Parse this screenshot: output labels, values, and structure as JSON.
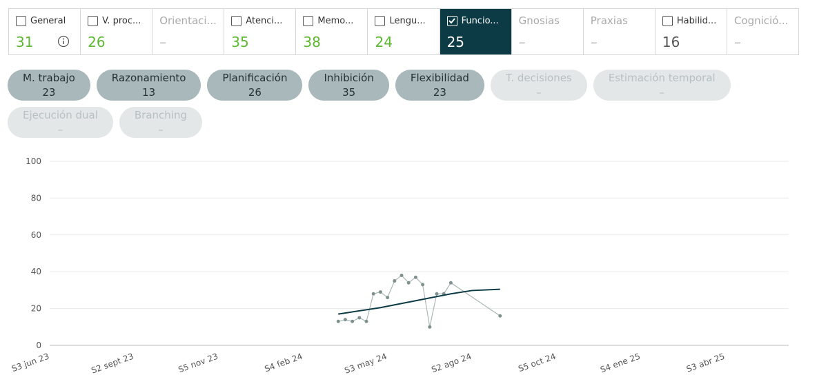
{
  "tabs": [
    {
      "label": "General",
      "value": 31,
      "checkbox": true,
      "checked": false,
      "info": true,
      "value_color": "#5cb82e"
    },
    {
      "label": "V. proc...",
      "value": 26,
      "checkbox": true,
      "checked": false,
      "value_color": "#5cb82e"
    },
    {
      "label": "Orientaci...",
      "value": "–",
      "checkbox": false,
      "checked": false,
      "value_color": "#b5b5b5"
    },
    {
      "label": "Atenci...",
      "value": 35,
      "checkbox": true,
      "checked": false,
      "value_color": "#5cb82e"
    },
    {
      "label": "Memo...",
      "value": 38,
      "checkbox": true,
      "checked": false,
      "value_color": "#5cb82e"
    },
    {
      "label": "Lengu...",
      "value": 24,
      "checkbox": true,
      "checked": false,
      "value_color": "#5cb82e"
    },
    {
      "label": "Funcio...",
      "value": 25,
      "checkbox": true,
      "checked": true,
      "value_color": "#ffffff"
    },
    {
      "label": "Gnosias",
      "value": "–",
      "checkbox": false,
      "checked": false,
      "value_color": "#b5b5b5"
    },
    {
      "label": "Praxias",
      "value": "–",
      "checkbox": false,
      "checked": false,
      "value_color": "#b5b5b5"
    },
    {
      "label": "Habilid...",
      "value": 16,
      "checkbox": true,
      "checked": false,
      "value_color": "#555555"
    },
    {
      "label": "Cognició...",
      "value": "–",
      "checkbox": false,
      "checked": false,
      "value_color": "#b5b5b5"
    }
  ],
  "pills": [
    {
      "label": "M. trabajo",
      "value": 23,
      "enabled": true
    },
    {
      "label": "Razonamiento",
      "value": 13,
      "enabled": true
    },
    {
      "label": "Planificación",
      "value": 26,
      "enabled": true
    },
    {
      "label": "Inhibición",
      "value": 35,
      "enabled": true
    },
    {
      "label": "Flexibilidad",
      "value": 23,
      "enabled": true
    },
    {
      "label": "T. decisiones",
      "value": "–",
      "enabled": false
    },
    {
      "label": "Estimación temporal",
      "value": "–",
      "enabled": false
    },
    {
      "label": "Ejecución dual",
      "value": "–",
      "enabled": false
    },
    {
      "label": "Branching",
      "value": "–",
      "enabled": false
    }
  ],
  "chart_data": {
    "type": "line",
    "xlim": [
      0,
      105
    ],
    "xticks": [
      {
        "value": 0,
        "label": "S3 jun 23"
      },
      {
        "value": 12,
        "label": "S2 sept 23"
      },
      {
        "value": 24,
        "label": "S5 nov 23"
      },
      {
        "value": 36,
        "label": "S4 feb 24"
      },
      {
        "value": 48,
        "label": "S3 may 24"
      },
      {
        "value": 60,
        "label": "S2 ago 24"
      },
      {
        "value": 72,
        "label": "S5 oct 24"
      },
      {
        "value": 84,
        "label": "S4 ene 25"
      },
      {
        "value": 96,
        "label": "S3 abr 25"
      }
    ],
    "ylim": [
      0,
      100
    ],
    "yticks": [
      0,
      20,
      40,
      60,
      80,
      100
    ],
    "grid": true,
    "series": [
      {
        "color": "#a9b7b5",
        "markers": true,
        "width": 1.2,
        "x": [
          41,
          42,
          43,
          44,
          45,
          46,
          47,
          48,
          49,
          50,
          51,
          52,
          53,
          54,
          55,
          56,
          57,
          64
        ],
        "values": [
          13,
          14,
          13,
          15,
          13,
          28,
          29,
          26,
          35,
          38,
          34,
          37,
          33,
          10,
          28,
          28,
          34,
          16
        ]
      },
      {
        "color": "#0d3b45",
        "markers": false,
        "width": 2,
        "x": [
          41,
          47,
          53,
          57,
          60,
          64
        ],
        "values": [
          17,
          20.5,
          25,
          28,
          29.8,
          30.5
        ]
      }
    ]
  }
}
